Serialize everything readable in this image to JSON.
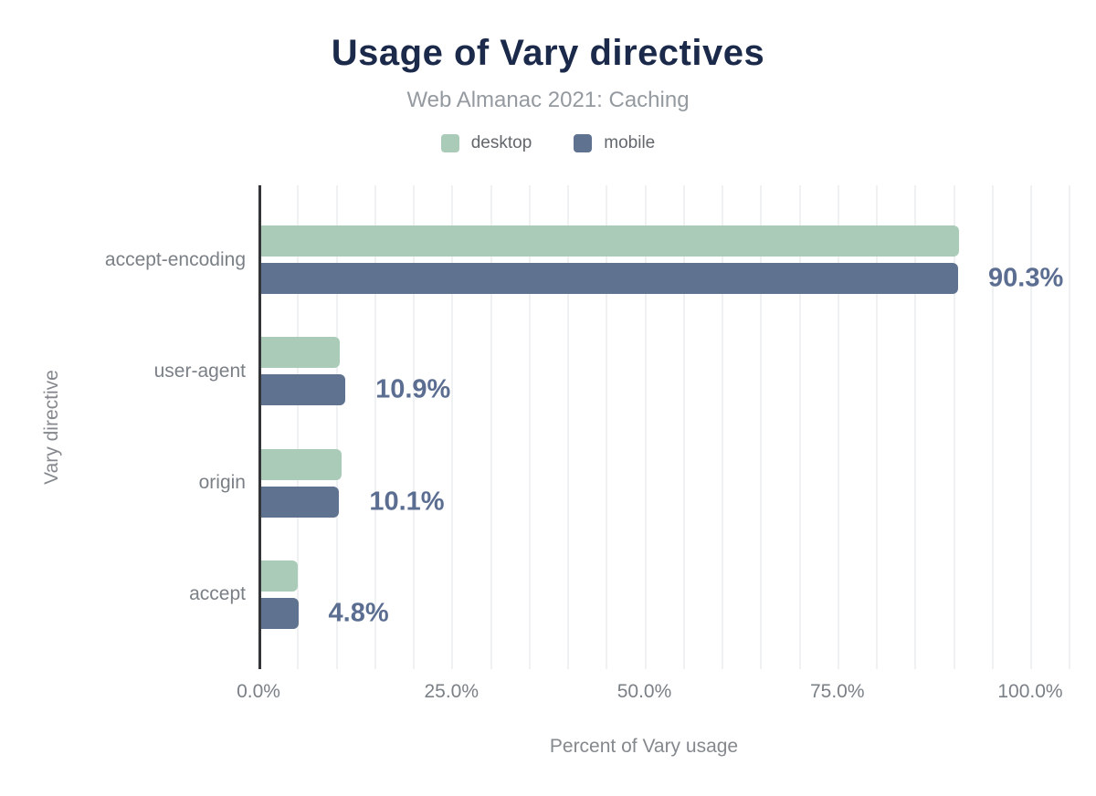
{
  "chart_data": {
    "type": "bar",
    "orientation": "horizontal",
    "title": "Usage of Vary directives",
    "subtitle": "Web Almanac 2021: Caching",
    "xlabel": "Percent of Vary usage",
    "ylabel": "Vary directive",
    "categories": [
      "accept-encoding",
      "user-agent",
      "origin",
      "accept"
    ],
    "series": [
      {
        "name": "desktop",
        "color": "#a9cbb7",
        "values": [
          90.4,
          10.2,
          10.4,
          4.7
        ]
      },
      {
        "name": "mobile",
        "color": "#5f7390",
        "values": [
          90.3,
          10.9,
          10.1,
          4.8
        ]
      }
    ],
    "value_labels": [
      "90.3%",
      "10.9%",
      "10.1%",
      "4.8%"
    ],
    "value_label_series": "mobile",
    "x_ticks": [
      {
        "value": 0,
        "label": "0.0%"
      },
      {
        "value": 25,
        "label": "25.0%"
      },
      {
        "value": 50,
        "label": "50.0%"
      },
      {
        "value": 75,
        "label": "75.0%"
      },
      {
        "value": 100,
        "label": "100.0%"
      }
    ],
    "xlim": [
      0,
      106
    ],
    "grid_step": 5,
    "grid": true,
    "legend_position": "top"
  },
  "colors": {
    "title": "#1b2a4a",
    "subtitle": "#949a9f",
    "axis_text": "#7b8086",
    "axis_title_text": "#85898e",
    "value_label": "#5b6e91",
    "gridline": "#f0f1f2",
    "axis_line": "#333538",
    "background": "#ffffff"
  }
}
